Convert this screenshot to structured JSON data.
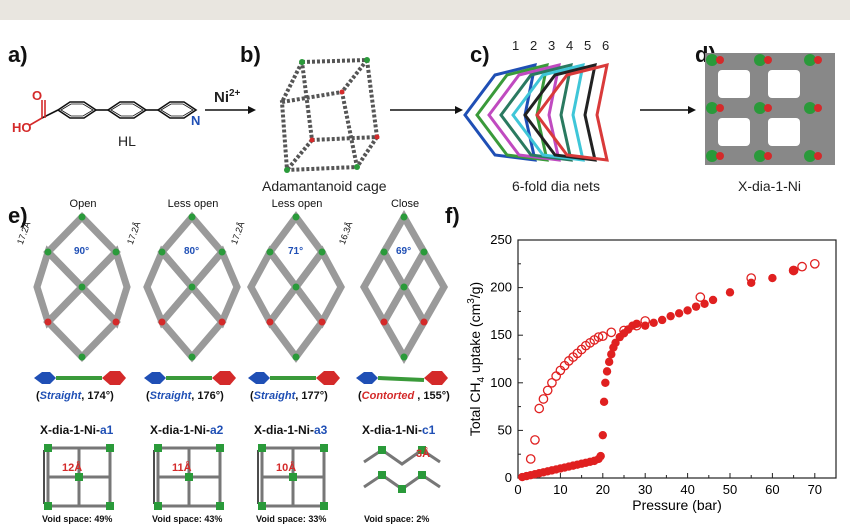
{
  "panels": {
    "a": {
      "label": "a)",
      "molecule_name": "HL",
      "arrow_label_base": "Ni",
      "arrow_label_sup": "2+",
      "atom_O": "O",
      "atom_HO": "HO",
      "atom_N": "N"
    },
    "b": {
      "label": "b)",
      "caption": "Adamantanoid cage"
    },
    "c": {
      "label": "c)",
      "caption": "6-fold dia nets",
      "net_numbers": [
        "1",
        "2",
        "3",
        "4",
        "5",
        "6"
      ],
      "net_colors": [
        "#1f4fb5",
        "#3a9a3a",
        "#c04ac0",
        "#2a7a60",
        "#3fc6d8",
        "#222222",
        "#d93a3a"
      ]
    },
    "d": {
      "label": "d)",
      "caption": "X-dia-1-Ni"
    },
    "e": {
      "label": "e)",
      "columns": [
        {
          "state": "Open",
          "dist": "17.2Å",
          "angle": "90°",
          "linker_type": "Straight",
          "linker_angle": ", 174°)",
          "name_base": "X-dia-1-Ni-",
          "name_suffix": "a1",
          "pore": "12Å",
          "void": "Void space: 49%"
        },
        {
          "state": "Less open",
          "dist": "17.2Å",
          "angle": "80°",
          "linker_type": "Straight",
          "linker_angle": ", 176°)",
          "name_base": "X-dia-1-Ni-",
          "name_suffix": "a2",
          "pore": "11Å",
          "void": "Void space: 43%"
        },
        {
          "state": "Less open",
          "dist": "17.2Å",
          "angle": "71°",
          "linker_type": "Straight",
          "linker_angle": ", 177°)",
          "name_base": "X-dia-1-Ni-",
          "name_suffix": "a3",
          "pore": "10Å",
          "void": "Void space: 33%"
        },
        {
          "state": "Close",
          "dist": "16.3Å",
          "angle": "69°",
          "linker_type": "Contorted",
          "linker_angle": " , 155°)",
          "name_base": "X-dia-1-Ni-",
          "name_suffix": "c1",
          "pore": "3Å",
          "void": "Void space: 2%"
        }
      ],
      "colors": {
        "blue": "#1f4fb5",
        "red": "#d42a2a"
      }
    },
    "f": {
      "label": "f)"
    }
  },
  "chart_data": {
    "type": "scatter",
    "xlabel": "Pressure (bar)",
    "ylabel_base": "Total CH",
    "ylabel_sub": "4",
    "ylabel_mid": " uptake (cm",
    "ylabel_sup": "3",
    "ylabel_end": "/g)",
    "xlim": [
      0,
      75
    ],
    "ylim": [
      0,
      250
    ],
    "xticks": [
      0,
      10,
      20,
      30,
      40,
      50,
      60,
      70
    ],
    "yticks": [
      0,
      50,
      100,
      150,
      200,
      250
    ],
    "grid": false,
    "series": [
      {
        "style": "filled",
        "color": "#e02020",
        "points": [
          [
            1,
            1
          ],
          [
            2,
            2
          ],
          [
            3,
            3
          ],
          [
            4,
            4
          ],
          [
            5,
            5
          ],
          [
            6,
            6
          ],
          [
            7,
            7
          ],
          [
            8,
            8
          ],
          [
            9,
            9
          ],
          [
            10,
            10
          ],
          [
            11,
            11
          ],
          [
            12,
            12
          ],
          [
            13,
            13
          ],
          [
            14,
            14
          ],
          [
            15,
            15
          ],
          [
            16,
            16
          ],
          [
            17,
            17
          ],
          [
            18,
            18
          ],
          [
            19,
            20
          ],
          [
            19.5,
            23
          ],
          [
            20,
            45
          ],
          [
            20.3,
            80
          ],
          [
            20.6,
            100
          ],
          [
            21,
            112
          ],
          [
            21.5,
            122
          ],
          [
            22,
            130
          ],
          [
            22.5,
            137
          ],
          [
            23,
            142
          ],
          [
            24,
            148
          ],
          [
            25,
            152
          ],
          [
            26,
            156
          ],
          [
            27,
            160
          ],
          [
            28,
            162
          ],
          [
            30,
            160
          ],
          [
            32,
            163
          ],
          [
            34,
            166
          ],
          [
            36,
            170
          ],
          [
            38,
            173
          ],
          [
            40,
            176
          ],
          [
            42,
            180
          ],
          [
            44,
            183
          ],
          [
            46,
            187
          ],
          [
            50,
            195
          ],
          [
            55,
            205
          ],
          [
            60,
            210
          ],
          [
            65,
            218
          ]
        ]
      },
      {
        "style": "open",
        "color": "#e02020",
        "points": [
          [
            3,
            20
          ],
          [
            4,
            40
          ],
          [
            5,
            73
          ],
          [
            6,
            83
          ],
          [
            7,
            92
          ],
          [
            8,
            100
          ],
          [
            9,
            107
          ],
          [
            10,
            113
          ],
          [
            11,
            118
          ],
          [
            12,
            123
          ],
          [
            13,
            127
          ],
          [
            14,
            131
          ],
          [
            15,
            135
          ],
          [
            16,
            139
          ],
          [
            17,
            142
          ],
          [
            18,
            145
          ],
          [
            19,
            148
          ],
          [
            20,
            149
          ],
          [
            22,
            153
          ],
          [
            25,
            155
          ],
          [
            28,
            160
          ],
          [
            30,
            165
          ],
          [
            43,
            190
          ],
          [
            55,
            210
          ],
          [
            65,
            218
          ],
          [
            67,
            222
          ],
          [
            70,
            225
          ]
        ]
      }
    ]
  }
}
